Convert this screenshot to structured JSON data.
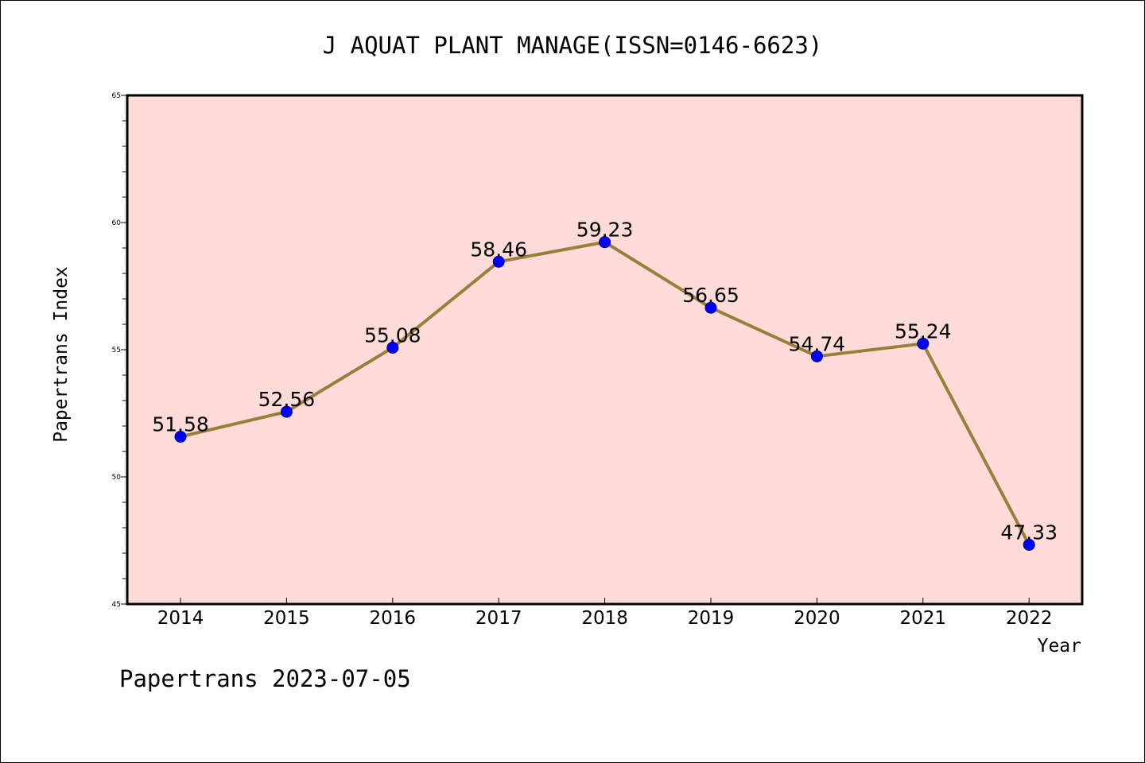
{
  "chart_data": {
    "type": "line",
    "title": "J AQUAT PLANT MANAGE(ISSN=0146-6623)",
    "xlabel": "Year",
    "ylabel": "Papertrans Index",
    "x": [
      "2014",
      "2015",
      "2016",
      "2017",
      "2018",
      "2019",
      "2020",
      "2021",
      "2022"
    ],
    "values": [
      51.58,
      52.56,
      55.08,
      58.46,
      59.23,
      56.65,
      54.74,
      55.24,
      47.33
    ],
    "data_labels": [
      "51.58",
      "52.56",
      "55.08",
      "58.46",
      "59.23",
      "56.65",
      "54.74",
      "55.24",
      "47.33"
    ],
    "ylim": [
      45,
      65
    ],
    "y_ticks": [
      45,
      50,
      55,
      60,
      65
    ],
    "y_tick_labels": [
      "45",
      "50",
      "55",
      "60",
      "65"
    ],
    "grid": false,
    "legend": "none",
    "colors": {
      "plot_background": "#fddbd8",
      "line": "#9a7f3a",
      "marker": "#0000ff",
      "axis": "#000000"
    }
  },
  "footer": "Papertrans 2023-07-05"
}
